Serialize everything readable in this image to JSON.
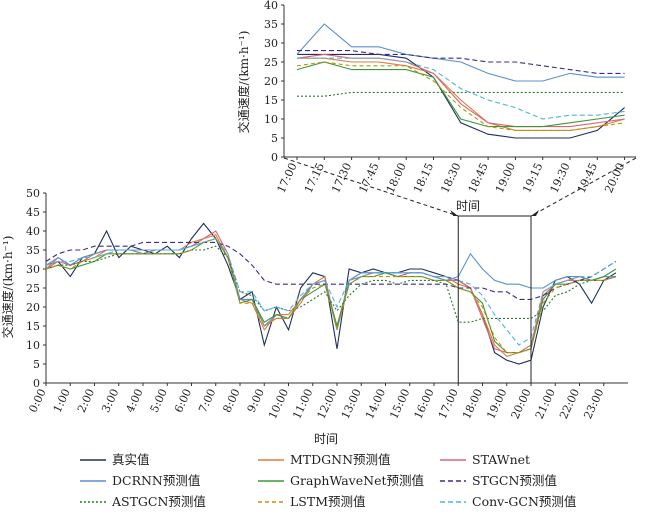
{
  "chart_data": [
    {
      "type": "line",
      "ylabel": "交通速度/(km·h⁻¹)",
      "xlabel": "时间",
      "ylim": [
        0,
        50
      ],
      "yticks": [
        0,
        5,
        10,
        15,
        20,
        25,
        30,
        35,
        40,
        45,
        50
      ],
      "xtick_labels": [
        "0:00",
        "1:00",
        "2:00",
        "3:00",
        "4:00",
        "5:00",
        "6:00",
        "7:00",
        "8:00",
        "9:00",
        "10:00",
        "11:00",
        "12:00",
        "13:00",
        "14:00",
        "15:00",
        "16:00",
        "17:00",
        "18:00",
        "19:00",
        "20:00",
        "21:00",
        "22:00",
        "23:00"
      ],
      "x_hours": [
        0,
        0.5,
        1,
        1.5,
        2,
        2.5,
        3,
        3.5,
        4,
        4.5,
        5,
        5.5,
        6,
        6.5,
        7,
        7.5,
        8,
        8.5,
        9,
        9.5,
        10,
        10.5,
        11,
        11.5,
        12,
        12.5,
        13,
        13.5,
        14,
        14.5,
        15,
        15.5,
        16,
        16.5,
        17,
        17.5,
        18,
        18.5,
        19,
        19.5,
        20,
        20.5,
        21,
        21.5,
        22,
        22.5,
        23,
        23.5
      ],
      "zoom_window_hours": [
        17,
        20
      ],
      "series": [
        {
          "name": "真实值",
          "color": "#1f2f5e",
          "dash": "",
          "values": [
            31,
            32,
            28,
            33,
            34,
            40,
            33,
            36,
            35,
            34,
            36,
            33,
            38,
            42,
            38,
            31,
            22,
            24,
            10,
            20,
            14,
            25,
            29,
            28,
            9,
            30,
            29,
            30,
            29,
            29,
            30,
            30,
            29,
            28,
            27,
            25,
            18,
            8,
            6,
            5,
            6,
            20,
            27,
            28,
            26,
            21,
            27,
            29
          ]
        },
        {
          "name": "MTDGNN预测值",
          "color": "#e07b3c",
          "dash": "",
          "values": [
            30,
            33,
            31,
            32,
            33,
            35,
            35,
            35,
            34,
            35,
            35,
            35,
            37,
            38,
            39,
            33,
            22,
            21,
            14,
            18,
            18,
            22,
            26,
            28,
            14,
            27,
            29,
            29,
            29,
            28,
            29,
            29,
            28,
            28,
            26,
            25,
            18,
            10,
            7,
            8,
            9,
            24,
            26,
            27,
            28,
            27,
            28,
            28
          ]
        },
        {
          "name": "STAWnet",
          "color": "#d9667a",
          "dash": "",
          "values": [
            30,
            32,
            31,
            32,
            34,
            35,
            35,
            35,
            35,
            35,
            35,
            35,
            36,
            38,
            40,
            34,
            22,
            22,
            15,
            17,
            17,
            21,
            26,
            27,
            15,
            27,
            28,
            29,
            29,
            28,
            29,
            29,
            28,
            27,
            27,
            25,
            17,
            9,
            8,
            8,
            10,
            23,
            26,
            27,
            27,
            27,
            27,
            28
          ]
        },
        {
          "name": "DCRNN预测值",
          "color": "#5a8fd0",
          "dash": "",
          "values": [
            31,
            33,
            31,
            33,
            34,
            35,
            35,
            35,
            34,
            35,
            35,
            35,
            36,
            37,
            38,
            33,
            22,
            22,
            15,
            18,
            17,
            22,
            26,
            27,
            14,
            27,
            29,
            29,
            29,
            29,
            29,
            29,
            28,
            27,
            28,
            34,
            30,
            27,
            26,
            26,
            25,
            25,
            27,
            28,
            28,
            27,
            28,
            28
          ]
        },
        {
          "name": "GraphWaveNet预测值",
          "color": "#3a9a3a",
          "dash": "",
          "values": [
            30,
            31,
            30,
            31,
            32,
            34,
            34,
            34,
            34,
            34,
            34,
            34,
            35,
            37,
            38,
            33,
            21,
            22,
            16,
            18,
            17,
            22,
            24,
            26,
            15,
            26,
            28,
            28,
            29,
            28,
            28,
            28,
            27,
            27,
            25,
            24,
            21,
            11,
            8,
            8,
            9,
            22,
            26,
            26,
            27,
            27,
            28,
            30
          ]
        },
        {
          "name": "STGCN预测值",
          "color": "#3b2a8a",
          "dash": "5,3",
          "values": [
            32,
            34,
            35,
            35,
            36,
            36,
            36,
            36,
            37,
            37,
            37,
            37,
            37,
            37,
            37,
            36,
            34,
            31,
            27,
            26,
            26,
            26,
            26,
            26,
            26,
            26,
            26,
            26,
            26,
            26,
            26,
            26,
            26,
            26,
            25,
            25,
            25,
            24,
            24,
            22,
            22,
            23,
            25,
            26,
            27,
            28,
            30,
            32
          ]
        },
        {
          "name": "ASTGCN预测值",
          "color": "#2f7a2f",
          "dash": "2,2",
          "values": [
            30,
            31,
            31,
            32,
            32,
            33,
            34,
            34,
            34,
            34,
            34,
            34,
            35,
            35,
            36,
            33,
            24,
            23,
            19,
            20,
            19,
            20,
            22,
            24,
            19,
            23,
            26,
            27,
            27,
            26,
            27,
            27,
            27,
            26,
            16,
            16,
            17,
            17,
            17,
            17,
            17,
            19,
            23,
            24,
            26,
            27,
            27,
            28
          ]
        },
        {
          "name": "LSTM预测值",
          "color": "#b8960c",
          "dash": "4,3",
          "values": [
            30,
            31,
            30,
            32,
            33,
            34,
            34,
            34,
            34,
            34,
            34,
            34,
            35,
            37,
            38,
            33,
            21,
            21,
            15,
            17,
            17,
            22,
            25,
            26,
            14,
            26,
            28,
            28,
            28,
            28,
            28,
            28,
            27,
            27,
            25,
            24,
            20,
            12,
            8,
            8,
            9,
            21,
            25,
            26,
            27,
            27,
            27,
            28
          ]
        },
        {
          "name": "Conv-GCN预测值",
          "color": "#4fb3e0",
          "dash": "5,3",
          "values": [
            31,
            32,
            32,
            33,
            33,
            34,
            35,
            35,
            35,
            35,
            35,
            35,
            36,
            37,
            38,
            34,
            24,
            24,
            19,
            20,
            19,
            23,
            26,
            27,
            20,
            27,
            28,
            29,
            29,
            29,
            29,
            29,
            28,
            28,
            27,
            26,
            23,
            18,
            14,
            10,
            12,
            24,
            26,
            27,
            28,
            28,
            30,
            32
          ]
        }
      ]
    },
    {
      "type": "line",
      "ylabel": "交通速度/(km·h⁻¹)",
      "xlabel": "时间",
      "ylim": [
        0,
        40
      ],
      "yticks": [
        0,
        5,
        10,
        15,
        20,
        25,
        30,
        35,
        40
      ],
      "categories": [
        "17:00",
        "17:15",
        "17:30",
        "17:45",
        "18:00",
        "18:15",
        "18:30",
        "18:45",
        "19:00",
        "19:15",
        "19:30",
        "19:45",
        "20:00"
      ],
      "series": [
        {
          "name": "真实值",
          "values": [
            27,
            27,
            27,
            27,
            26,
            21,
            9,
            6,
            5,
            5,
            5,
            7,
            13
          ]
        },
        {
          "name": "MTDGNN预测值",
          "values": [
            26,
            26,
            25,
            25,
            24,
            22,
            15,
            9,
            7,
            7,
            7,
            8,
            10
          ]
        },
        {
          "name": "STAWnet",
          "values": [
            26,
            27,
            26,
            26,
            25,
            22,
            14,
            9,
            8,
            8,
            8,
            9,
            10
          ]
        },
        {
          "name": "DCRNN预测值",
          "values": [
            27,
            35,
            29,
            29,
            27,
            26,
            25,
            22,
            20,
            20,
            22,
            21,
            21
          ]
        },
        {
          "name": "GraphWaveNet预测值",
          "values": [
            23,
            25,
            23,
            23,
            23,
            21,
            10,
            8,
            8,
            8,
            9,
            10,
            11
          ]
        },
        {
          "name": "STGCN预测值",
          "values": [
            28,
            28,
            28,
            27,
            27,
            26,
            26,
            25,
            25,
            24,
            23,
            22,
            22
          ]
        },
        {
          "name": "ASTGCN预测值",
          "values": [
            16,
            16,
            17,
            17,
            17,
            17,
            17,
            17,
            17,
            17,
            17,
            17,
            17
          ]
        },
        {
          "name": "LSTM预测值",
          "values": [
            24,
            25,
            24,
            24,
            24,
            20,
            13,
            8,
            7,
            7,
            7,
            8,
            9
          ]
        },
        {
          "name": "Conv-GCN预测值",
          "values": [
            26,
            26,
            26,
            26,
            25,
            23,
            18,
            15,
            13,
            10,
            11,
            11,
            12
          ]
        }
      ]
    }
  ],
  "legend": [
    "真实值",
    "MTDGNN预测值",
    "STAWnet",
    "DCRNN预测值",
    "GraphWaveNet预测值",
    "STGCN预测值",
    "ASTGCN预测值",
    "LSTM预测值",
    "Conv-GCN预测值"
  ]
}
